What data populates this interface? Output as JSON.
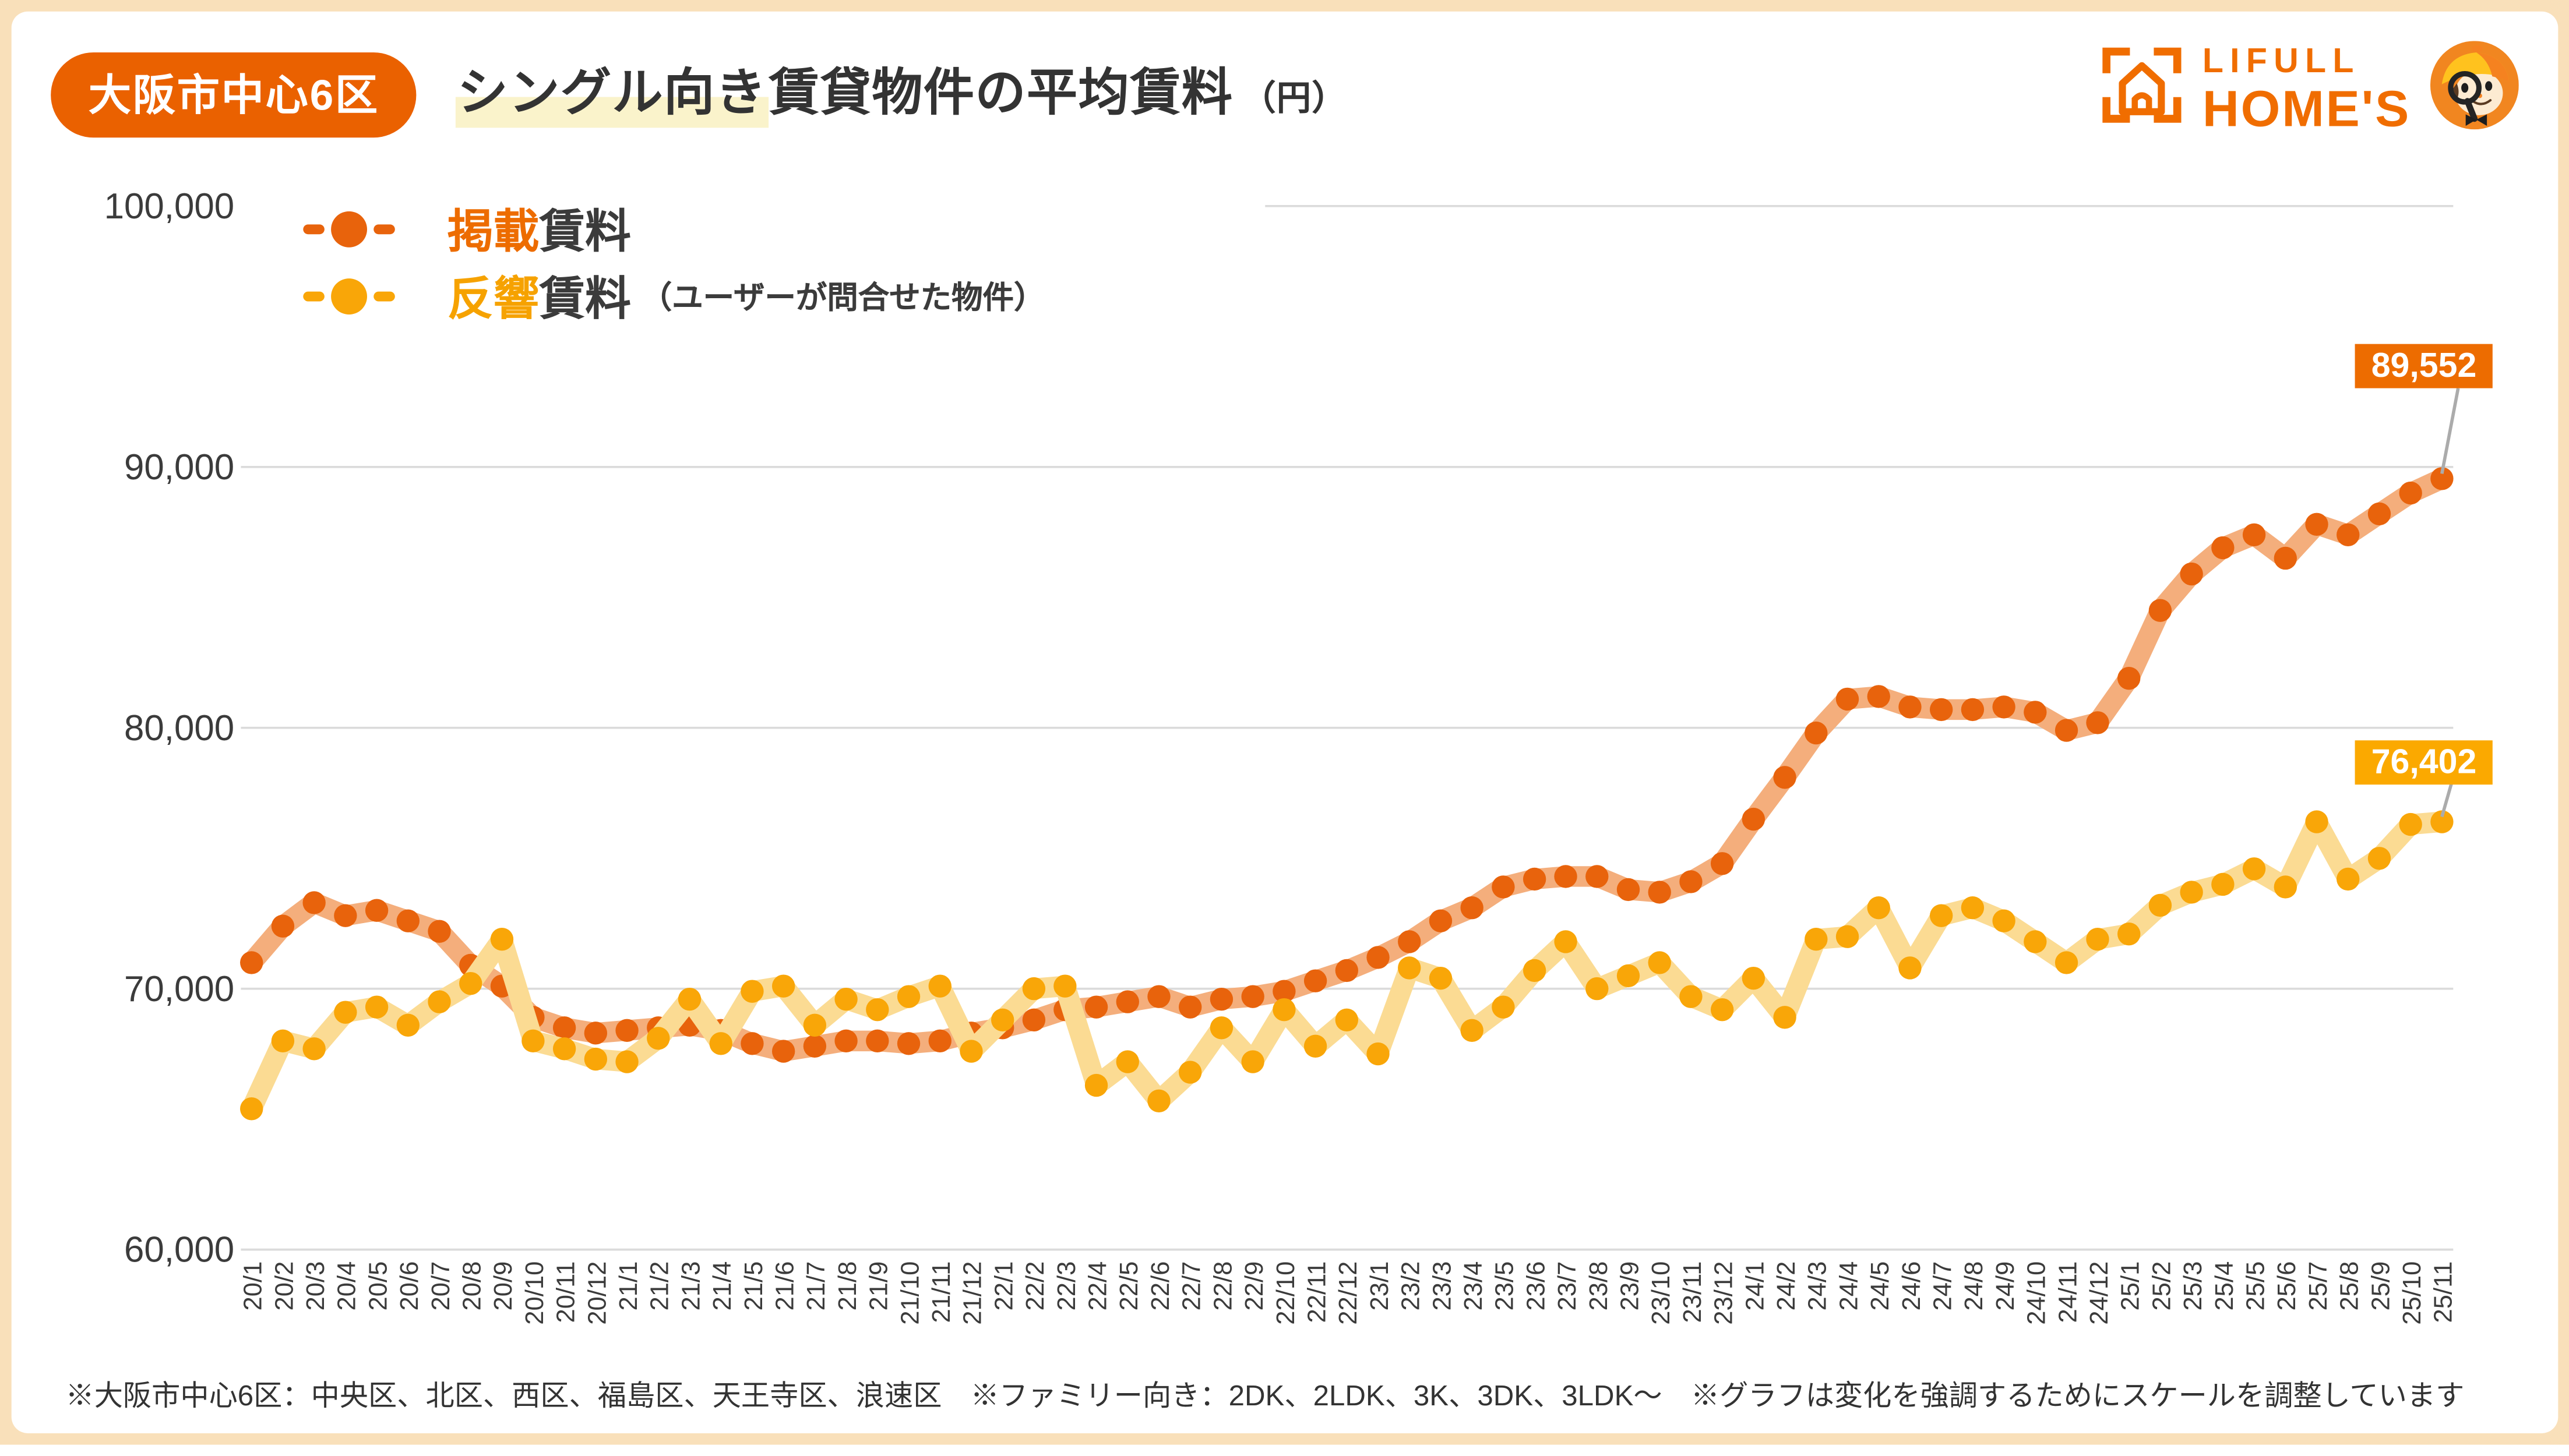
{
  "frame": {
    "border_color": "#F9E0BA",
    "card_bg": "#FFFFFF"
  },
  "header": {
    "badge": "大阪市中心6区",
    "badge_bg": "#EA6100",
    "title_highlight": "シングル向き",
    "title_rest": "賃貸物件の平均賃料",
    "title_unit": "（円）",
    "highlight_color": "#FAF3CB"
  },
  "logo": {
    "line1": "LIFULL",
    "line2": "HOME'S",
    "color": "#F06D00",
    "mascot_bg": "#F18620"
  },
  "legend": {
    "items": [
      {
        "label_colored": "掲載",
        "label_rest": "賃料",
        "note": "",
        "color": "#ED6C00",
        "marker_color": "#E8630C"
      },
      {
        "label_colored": "反響",
        "label_rest": "賃料",
        "note": "（ユーザーが問合せた物件）",
        "color": "#F6A200",
        "marker_color": "#F9A608"
      }
    ]
  },
  "chart_data": {
    "type": "line",
    "x": [
      "20/1",
      "20/2",
      "20/3",
      "20/4",
      "20/5",
      "20/6",
      "20/7",
      "20/8",
      "20/9",
      "20/10",
      "20/11",
      "20/12",
      "21/1",
      "21/2",
      "21/3",
      "21/4",
      "21/5",
      "21/6",
      "21/7",
      "21/8",
      "21/9",
      "21/10",
      "21/11",
      "21/12",
      "22/1",
      "22/2",
      "22/3",
      "22/4",
      "22/5",
      "22/6",
      "22/7",
      "22/8",
      "22/9",
      "22/10",
      "22/11",
      "22/12",
      "23/1",
      "23/2",
      "23/3",
      "23/4",
      "23/5",
      "23/6",
      "23/7",
      "23/8",
      "23/9",
      "23/10",
      "23/11",
      "23/12",
      "24/1",
      "24/2",
      "24/3",
      "24/4",
      "24/5",
      "24/6",
      "24/7",
      "24/8",
      "24/9",
      "24/10",
      "24/11",
      "24/12",
      "25/1",
      "25/2",
      "25/3",
      "25/4",
      "25/5",
      "25/6",
      "25/7",
      "25/8",
      "25/9",
      "25/10",
      "25/11"
    ],
    "series": [
      {
        "name": "掲載賃料",
        "color": "#E8630C",
        "band_color": "#F4AE7C",
        "values": [
          71000,
          72400,
          73300,
          72800,
          73000,
          72600,
          72200,
          70900,
          70100,
          68900,
          68500,
          68300,
          68400,
          68500,
          68600,
          68400,
          67900,
          67600,
          67800,
          68000,
          68000,
          67900,
          68000,
          68300,
          68500,
          68800,
          69200,
          69300,
          69500,
          69700,
          69300,
          69600,
          69700,
          69900,
          70300,
          70700,
          71200,
          71800,
          72600,
          73100,
          73900,
          74200,
          74300,
          74300,
          73800,
          73700,
          74100,
          74800,
          76500,
          78100,
          79800,
          81100,
          81200,
          80800,
          80700,
          80700,
          80800,
          80600,
          79900,
          80200,
          81900,
          84500,
          85900,
          86900,
          87400,
          86500,
          87800,
          87400,
          88200,
          89000,
          89552
        ]
      },
      {
        "name": "反響賃料（ユーザーが問合せた物件）",
        "color": "#F9A608",
        "band_color": "#FBDB93",
        "values": [
          65400,
          68000,
          67700,
          69100,
          69300,
          68600,
          69500,
          70200,
          71900,
          68000,
          67700,
          67300,
          67200,
          68100,
          69600,
          67900,
          69900,
          70100,
          68600,
          69600,
          69200,
          69700,
          70100,
          67600,
          68800,
          70000,
          70100,
          66300,
          67200,
          65700,
          66800,
          68500,
          67200,
          69200,
          67800,
          68800,
          67500,
          70800,
          70400,
          68400,
          69300,
          70700,
          71800,
          70000,
          70500,
          71000,
          69700,
          69200,
          70400,
          68900,
          71900,
          72000,
          73100,
          70800,
          72800,
          73100,
          72600,
          71800,
          71000,
          71900,
          72100,
          73200,
          73700,
          74000,
          74600,
          73900,
          76400,
          74200,
          75000,
          76300,
          76402
        ]
      }
    ],
    "ylim": [
      60000,
      100000
    ],
    "yticks": [
      {
        "value": 100000,
        "label": "100,000"
      },
      {
        "value": 90000,
        "label": "90,000"
      },
      {
        "value": 80000,
        "label": "80,000"
      },
      {
        "value": 70000,
        "label": "70,000"
      },
      {
        "value": 60000,
        "label": "60,000"
      }
    ],
    "grid": true,
    "grid_color": "#DBDBDB",
    "legend_position": "top-left",
    "end_labels": [
      {
        "text": "89,552",
        "bg": "#ED6C00"
      },
      {
        "text": "76,402",
        "bg": "#FBA900"
      }
    ]
  },
  "footer": {
    "note": "※大阪市中心6区：中央区、北区、西区、福島区、天王寺区、浪速区　※ファミリー向き：2DK、2LDK、3K、3DK、3LDK〜　※グラフは変化を強調するためにスケールを調整しています"
  }
}
